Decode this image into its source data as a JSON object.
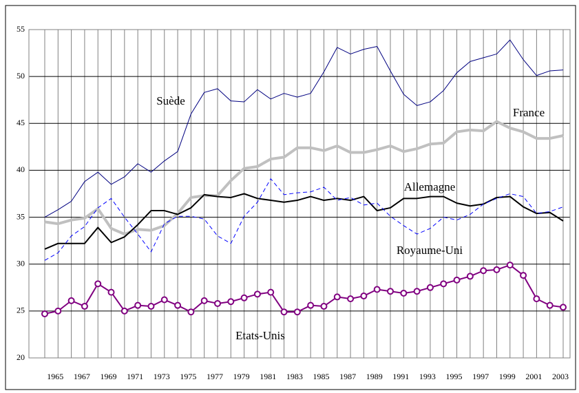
{
  "chart_data": {
    "type": "line",
    "categories": [
      null,
      "1965",
      null,
      "1967",
      null,
      "1969",
      null,
      "1971",
      null,
      "1973",
      null,
      "1975",
      null,
      "1977",
      null,
      "1979",
      null,
      "1981",
      null,
      "1983",
      null,
      "1985",
      null,
      "1987",
      null,
      "1989",
      null,
      "1991",
      null,
      "1993",
      null,
      "1995",
      null,
      "1997",
      null,
      "1999",
      null,
      "2001",
      null,
      "2003"
    ],
    "ylim": [
      20,
      55
    ],
    "yticks": [
      20,
      25,
      30,
      35,
      40,
      45,
      50,
      55
    ],
    "grid": true,
    "series": [
      {
        "name": "Suède",
        "color": "#000080",
        "width": 1,
        "values": [
          35.0,
          35.8,
          36.7,
          38.8,
          39.8,
          38.5,
          39.3,
          40.7,
          39.8,
          41.0,
          42.0,
          46.0,
          48.3,
          48.7,
          47.4,
          47.3,
          48.6,
          47.6,
          48.2,
          47.8,
          48.2,
          50.5,
          53.1,
          52.4,
          52.9,
          53.2,
          50.6,
          48.1,
          46.9,
          47.3,
          48.5,
          50.4,
          51.6,
          52.0,
          52.4,
          53.9,
          51.8,
          50.1,
          50.6,
          50.7
        ]
      },
      {
        "name": "France",
        "color": "#c0c0c0",
        "width": 4,
        "values": [
          34.5,
          34.3,
          34.7,
          34.9,
          35.9,
          33.8,
          33.2,
          33.7,
          33.6,
          34.1,
          35.4,
          37.1,
          37.3,
          37.3,
          38.9,
          40.2,
          40.4,
          41.2,
          41.4,
          42.4,
          42.4,
          42.1,
          42.6,
          41.9,
          41.9,
          42.2,
          42.6,
          42.0,
          42.3,
          42.8,
          42.9,
          44.1,
          44.3,
          44.2,
          45.2,
          44.5,
          44.1,
          43.4,
          43.4,
          43.7
        ]
      },
      {
        "name": "Allemagne",
        "color": "#000000",
        "width": 2,
        "values": [
          31.6,
          32.2,
          32.2,
          32.2,
          33.9,
          32.3,
          32.9,
          34.2,
          35.7,
          35.7,
          35.3,
          36.0,
          37.4,
          37.2,
          37.1,
          37.5,
          37.0,
          36.8,
          36.6,
          36.8,
          37.2,
          36.8,
          37.0,
          36.8,
          37.2,
          35.7,
          36.0,
          37.0,
          37.0,
          37.2,
          37.2,
          36.5,
          36.2,
          36.4,
          37.1,
          37.2,
          36.1,
          35.4,
          35.5,
          34.6
        ]
      },
      {
        "name": "Royaume-Uni",
        "color": "#0000ff",
        "width": 1,
        "dashed": true,
        "values": [
          30.4,
          31.2,
          33.0,
          34.0,
          36.0,
          37.0,
          35.0,
          33.2,
          31.3,
          34.3,
          35.1,
          35.1,
          34.8,
          33.0,
          32.2,
          35.1,
          36.6,
          39.1,
          37.4,
          37.6,
          37.7,
          38.2,
          36.8,
          37.1,
          36.3,
          36.5,
          35.1,
          34.1,
          33.2,
          33.8,
          35.0,
          34.7,
          35.3,
          36.4,
          37.0,
          37.5,
          37.2,
          35.4,
          35.6,
          36.1
        ]
      },
      {
        "name": "Etats-Unis",
        "color": "#800080",
        "width": 2,
        "marker": "circle",
        "values": [
          24.7,
          25.0,
          26.1,
          25.5,
          27.9,
          27.0,
          25.0,
          25.6,
          25.5,
          26.2,
          25.6,
          24.9,
          26.1,
          25.8,
          26.0,
          26.4,
          26.8,
          27.0,
          24.9,
          24.9,
          25.6,
          25.5,
          26.5,
          26.3,
          26.6,
          27.3,
          27.1,
          26.9,
          27.1,
          27.5,
          27.9,
          28.3,
          28.7,
          29.3,
          29.4,
          29.9,
          28.8,
          26.3,
          25.6,
          25.4
        ]
      }
    ]
  }
}
